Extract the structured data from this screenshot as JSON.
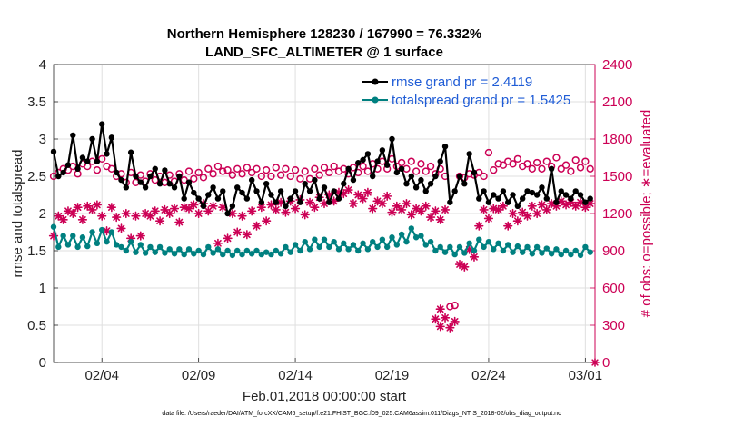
{
  "chart_data": {
    "type": "line",
    "title": "Northern Hemisphere 128230 / 167990 = 76.332%",
    "subtitle": "LAND_SFC_ALTIMETER @ 1 surface",
    "xlabel": "Feb.01,2018 00:00:00 start",
    "ylabel": "rmse and totalspread",
    "y2label": "# of obs: o=possible; ∗=evaluated",
    "footnote": "data file: /Users/raeder/DAI/ATM_forcXX/CAM6_setup/f.e21.FHIST_BGC.f09_025.CAM6assim.011/Diags_NTrS_2018-02/obs_diag_output.nc",
    "xlim": [
      0.5,
      28.5
    ],
    "ylim": [
      0,
      4
    ],
    "y2lim": [
      0,
      2400
    ],
    "xticks": [
      3,
      8,
      13,
      18,
      23,
      28
    ],
    "xticklabels": [
      "02/04",
      "02/09",
      "02/14",
      "02/19",
      "02/24",
      "03/01"
    ],
    "yticks": [
      0,
      0.5,
      1,
      1.5,
      2,
      2.5,
      3,
      3.5,
      4
    ],
    "yticklabels": [
      "0",
      "0.5",
      "1",
      "1.5",
      "2",
      "2.5",
      "3",
      "3.5",
      "4"
    ],
    "y2ticks": [
      0,
      300,
      600,
      900,
      1200,
      1500,
      1800,
      2100,
      2400
    ],
    "y2ticklabels": [
      "0",
      "300",
      "600",
      "900",
      "1200",
      "1500",
      "1800",
      "2100",
      "2400"
    ],
    "grid": true,
    "legend_position": "top-right",
    "series": [
      {
        "name": "rmse grand pr = 2.4119",
        "axis": "left",
        "color": "#000000",
        "marker": "filled-circle",
        "x": [
          0.5,
          0.75,
          1.0,
          1.25,
          1.5,
          1.75,
          2.0,
          2.25,
          2.5,
          2.75,
          3.0,
          3.25,
          3.5,
          3.75,
          4.0,
          4.25,
          4.5,
          4.75,
          5.0,
          5.25,
          5.5,
          5.75,
          6.0,
          6.25,
          6.5,
          6.75,
          7.0,
          7.25,
          7.5,
          7.75,
          8.0,
          8.25,
          8.5,
          8.75,
          9.0,
          9.25,
          9.5,
          9.75,
          10.0,
          10.25,
          10.5,
          10.75,
          11.0,
          11.25,
          11.5,
          11.75,
          12.0,
          12.25,
          12.5,
          12.75,
          13.0,
          13.25,
          13.5,
          13.75,
          14.0,
          14.25,
          14.5,
          14.75,
          15.0,
          15.25,
          15.5,
          15.75,
          16.0,
          16.25,
          16.5,
          16.75,
          17.0,
          17.25,
          17.5,
          17.75,
          18.0,
          18.25,
          18.5,
          18.75,
          19.0,
          19.25,
          19.5,
          19.75,
          20.0,
          20.25,
          20.5,
          20.75,
          21.0,
          21.25,
          21.5,
          21.75,
          22.0,
          22.25,
          22.5,
          22.75,
          23.0,
          23.25,
          23.5,
          23.75,
          24.0,
          24.25,
          24.5,
          24.75,
          25.0,
          25.25,
          25.5,
          25.75,
          26.0,
          26.25,
          26.5,
          26.75,
          27.0,
          27.25,
          27.5,
          27.75,
          28.0,
          28.25
        ],
        "values": [
          2.83,
          2.5,
          2.55,
          2.65,
          3.05,
          2.6,
          2.75,
          2.7,
          3.0,
          2.7,
          3.2,
          2.8,
          3.02,
          2.55,
          2.45,
          2.35,
          2.82,
          2.5,
          2.42,
          2.35,
          2.5,
          2.6,
          2.4,
          2.58,
          2.4,
          2.35,
          2.5,
          2.2,
          2.42,
          2.28,
          2.2,
          2.1,
          2.25,
          2.35,
          2.2,
          2.3,
          2.0,
          2.1,
          2.35,
          2.28,
          2.2,
          2.45,
          2.3,
          2.15,
          2.4,
          2.25,
          2.15,
          2.3,
          2.1,
          2.2,
          2.3,
          2.15,
          2.4,
          2.3,
          2.45,
          2.2,
          2.35,
          2.15,
          2.3,
          2.2,
          2.4,
          2.6,
          2.45,
          2.68,
          2.72,
          2.8,
          2.5,
          2.7,
          2.85,
          2.65,
          3.0,
          2.55,
          2.6,
          2.4,
          2.5,
          2.35,
          2.45,
          2.3,
          2.4,
          2.5,
          2.7,
          2.9,
          2.15,
          2.3,
          2.5,
          2.4,
          2.8,
          2.55,
          2.2,
          2.3,
          2.15,
          2.25,
          2.2,
          2.3,
          2.15,
          2.25,
          2.1,
          2.2,
          2.3,
          2.28,
          2.25,
          2.35,
          2.2,
          2.6,
          2.15,
          2.3,
          2.25,
          2.2,
          2.3,
          2.25,
          2.15,
          2.2
        ],
        "legend_label": "rmse grand pr = 2.4119"
      },
      {
        "name": "totalspread grand pr = 1.5425",
        "axis": "left",
        "color": "#008080",
        "marker": "filled-circle",
        "x": [
          0.5,
          0.75,
          1.0,
          1.25,
          1.5,
          1.75,
          2.0,
          2.25,
          2.5,
          2.75,
          3.0,
          3.25,
          3.5,
          3.75,
          4.0,
          4.25,
          4.5,
          4.75,
          5.0,
          5.25,
          5.5,
          5.75,
          6.0,
          6.25,
          6.5,
          6.75,
          7.0,
          7.25,
          7.5,
          7.75,
          8.0,
          8.25,
          8.5,
          8.75,
          9.0,
          9.25,
          9.5,
          9.75,
          10.0,
          10.25,
          10.5,
          10.75,
          11.0,
          11.25,
          11.5,
          11.75,
          12.0,
          12.25,
          12.5,
          12.75,
          13.0,
          13.25,
          13.5,
          13.75,
          14.0,
          14.25,
          14.5,
          14.75,
          15.0,
          15.25,
          15.5,
          15.75,
          16.0,
          16.25,
          16.5,
          16.75,
          17.0,
          17.25,
          17.5,
          17.75,
          18.0,
          18.25,
          18.5,
          18.75,
          19.0,
          19.25,
          19.5,
          19.75,
          20.0,
          20.25,
          20.5,
          20.75,
          21.0,
          21.25,
          21.5,
          21.75,
          22.0,
          22.25,
          22.5,
          22.75,
          23.0,
          23.25,
          23.5,
          23.75,
          24.0,
          24.25,
          24.5,
          24.75,
          25.0,
          25.25,
          25.5,
          25.75,
          26.0,
          26.25,
          26.5,
          26.75,
          27.0,
          27.25,
          27.5,
          27.75,
          28.0,
          28.25
        ],
        "values": [
          1.82,
          1.55,
          1.7,
          1.58,
          1.7,
          1.55,
          1.68,
          1.56,
          1.75,
          1.6,
          1.78,
          1.62,
          1.75,
          1.58,
          1.55,
          1.5,
          1.62,
          1.48,
          1.58,
          1.47,
          1.55,
          1.48,
          1.55,
          1.47,
          1.52,
          1.46,
          1.52,
          1.45,
          1.52,
          1.46,
          1.5,
          1.45,
          1.55,
          1.47,
          1.52,
          1.45,
          1.5,
          1.44,
          1.5,
          1.45,
          1.5,
          1.46,
          1.5,
          1.45,
          1.48,
          1.45,
          1.5,
          1.46,
          1.55,
          1.48,
          1.58,
          1.5,
          1.62,
          1.52,
          1.65,
          1.55,
          1.65,
          1.55,
          1.62,
          1.52,
          1.6,
          1.52,
          1.58,
          1.5,
          1.6,
          1.52,
          1.62,
          1.55,
          1.65,
          1.55,
          1.68,
          1.58,
          1.72,
          1.62,
          1.8,
          1.68,
          1.7,
          1.58,
          1.62,
          1.5,
          1.55,
          1.48,
          1.55,
          1.45,
          1.55,
          1.47,
          1.6,
          1.5,
          1.65,
          1.55,
          1.62,
          1.52,
          1.6,
          1.5,
          1.58,
          1.48,
          1.56,
          1.48,
          1.55,
          1.46,
          1.55,
          1.47,
          1.53,
          1.46,
          1.52,
          1.45,
          1.5,
          1.45,
          1.5,
          1.44,
          1.55,
          1.48
        ],
        "legend_label": "totalspread grand pr = 1.5425"
      },
      {
        "name": "obs possible",
        "axis": "right",
        "color": "#cc0055",
        "marker": "open-circle",
        "x": [
          0.5,
          0.75,
          1.0,
          1.25,
          1.5,
          1.75,
          2.0,
          2.25,
          2.5,
          2.75,
          3.0,
          3.25,
          3.5,
          3.75,
          4.0,
          4.25,
          4.5,
          4.75,
          5.0,
          5.25,
          5.5,
          5.75,
          6.0,
          6.25,
          6.5,
          6.75,
          7.0,
          7.25,
          7.5,
          7.75,
          8.0,
          8.25,
          8.5,
          8.75,
          9.0,
          9.25,
          9.5,
          9.75,
          10.0,
          10.25,
          10.5,
          10.75,
          11.0,
          11.25,
          11.5,
          11.75,
          12.0,
          12.25,
          12.5,
          12.75,
          13.0,
          13.25,
          13.5,
          13.75,
          14.0,
          14.25,
          14.5,
          14.75,
          15.0,
          15.25,
          15.5,
          15.75,
          16.0,
          16.25,
          16.5,
          16.75,
          17.0,
          17.25,
          17.5,
          17.75,
          18.0,
          18.25,
          18.5,
          18.75,
          19.0,
          19.25,
          19.5,
          19.75,
          20.0,
          20.25,
          20.5,
          20.75,
          21.0,
          21.25,
          21.5,
          21.75,
          22.0,
          22.25,
          22.5,
          22.75,
          23.0,
          23.25,
          23.5,
          23.75,
          24.0,
          24.25,
          24.5,
          24.75,
          25.0,
          25.25,
          25.5,
          25.75,
          26.0,
          26.25,
          26.5,
          26.75,
          27.0,
          27.25,
          27.5,
          27.75,
          28.0,
          28.25
        ],
        "values": [
          1500,
          1530,
          1560,
          1550,
          1580,
          1520,
          1600,
          1580,
          1620,
          1550,
          1640,
          1580,
          1560,
          1500,
          1520,
          1450,
          1530,
          1450,
          1510,
          1460,
          1520,
          1470,
          1500,
          1450,
          1510,
          1460,
          1520,
          1470,
          1540,
          1480,
          1530,
          1490,
          1560,
          1520,
          1580,
          1540,
          1550,
          1510,
          1560,
          1520,
          1570,
          1530,
          1560,
          1500,
          1550,
          1500,
          1570,
          1510,
          1560,
          1500,
          1550,
          1480,
          1540,
          1480,
          1560,
          1510,
          1570,
          1530,
          1580,
          1540,
          1560,
          1520,
          1570,
          1530,
          1580,
          1540,
          1600,
          1560,
          1620,
          1560,
          1640,
          1580,
          1610,
          1560,
          1620,
          1540,
          1600,
          1540,
          1580,
          1520,
          1560,
          1500,
          450,
          460,
          1500,
          1490,
          1520,
          1510,
          1530,
          1500,
          1690,
          1550,
          1600,
          1590,
          1620,
          1600,
          1640,
          1580,
          1600,
          1560,
          1610,
          1560,
          1620,
          1580,
          1650,
          1560,
          1590,
          1540,
          1630,
          1570,
          1620,
          1560
        ],
        "legend_label": ""
      },
      {
        "name": "obs evaluated",
        "axis": "right",
        "color": "#cc0055",
        "marker": "asterisk",
        "x": [
          0.5,
          0.75,
          1.0,
          1.25,
          1.5,
          1.75,
          2.0,
          2.25,
          2.5,
          2.75,
          3.0,
          3.25,
          3.5,
          3.75,
          4.0,
          4.25,
          4.5,
          4.75,
          5.0,
          5.25,
          5.5,
          5.75,
          6.0,
          6.25,
          6.5,
          6.75,
          7.0,
          7.25,
          7.5,
          7.75,
          8.0,
          8.25,
          8.5,
          8.75,
          9.0,
          9.25,
          9.5,
          9.75,
          10.0,
          10.25,
          10.5,
          10.75,
          11.0,
          11.25,
          11.5,
          11.75,
          12.0,
          12.25,
          12.5,
          12.75,
          13.0,
          13.25,
          13.5,
          13.75,
          14.0,
          14.25,
          14.5,
          14.75,
          15.0,
          15.25,
          15.5,
          15.75,
          16.0,
          16.25,
          16.5,
          16.75,
          17.0,
          17.25,
          17.5,
          17.75,
          18.0,
          18.25,
          18.5,
          18.75,
          19.0,
          19.25,
          19.5,
          19.75,
          20.0,
          20.25,
          20.5,
          20.75,
          21.0,
          21.25,
          21.5,
          21.75,
          22.0,
          22.25,
          22.5,
          22.75,
          23.0,
          23.25,
          23.5,
          23.75,
          24.0,
          24.25,
          24.5,
          24.75,
          25.0,
          25.25,
          25.5,
          25.75,
          26.0,
          26.25,
          26.5,
          26.75,
          27.0,
          27.25,
          27.5,
          27.75,
          28.0,
          28.25
        ],
        "values": [
          1020,
          1180,
          1150,
          1220,
          1200,
          1250,
          1150,
          1260,
          1230,
          1270,
          1180,
          1060,
          1250,
          1170,
          1080,
          1200,
          1000,
          1180,
          1020,
          1200,
          1180,
          1220,
          1140,
          1230,
          1200,
          1240,
          1130,
          1250,
          1240,
          1270,
          1200,
          1280,
          1220,
          1260,
          960,
          1250,
          1000,
          1200,
          1050,
          1180,
          1030,
          1220,
          1100,
          1250,
          1140,
          1270,
          1230,
          1290,
          1210,
          1300,
          1240,
          1310,
          1190,
          1290,
          1250,
          1330,
          1280,
          1350,
          1300,
          1370,
          1360,
          1390,
          1280,
          1350,
          1320,
          1370,
          1240,
          1300,
          1280,
          1340,
          1210,
          1260,
          1230,
          1280,
          1190,
          1240,
          1220,
          1260,
          1170,
          1220,
          1150,
          1230,
          280,
          330,
          790,
          770,
          910,
          850,
          1100,
          1230,
          1160,
          1240,
          1230,
          1260,
          1100,
          1200,
          1140,
          1210,
          1180,
          1260,
          1200,
          1270,
          1230,
          1280,
          1260,
          1300,
          1270,
          1290,
          1260,
          1290,
          1250,
          1280
        ],
        "legend_label": ""
      },
      {
        "name": "outliers",
        "axis": "right",
        "color": "#cc0055",
        "marker": "mixed",
        "x": [
          20.25,
          20.5,
          20.75,
          20.5
        ],
        "values": [
          350,
          290,
          360,
          430
        ],
        "legend_label": ""
      }
    ]
  }
}
